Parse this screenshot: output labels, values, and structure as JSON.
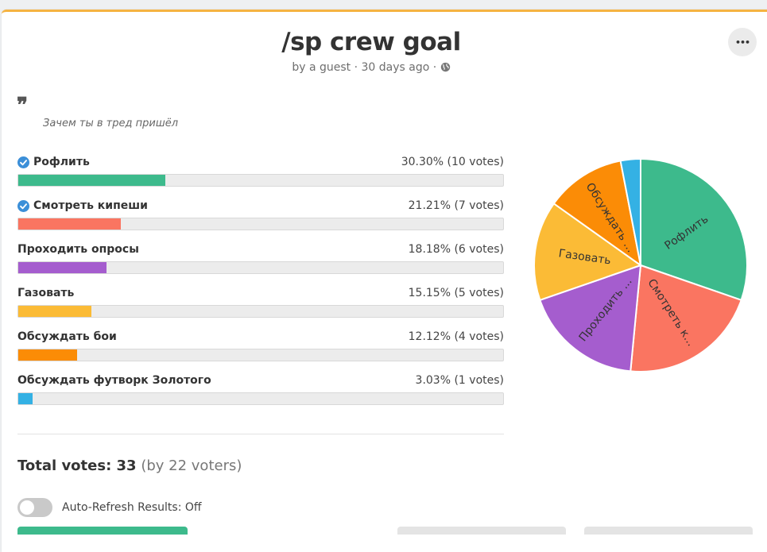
{
  "poll": {
    "title": "/sp crew goal",
    "byline": "by a guest · 30 days ago · ",
    "description": "Зачем ты в тред пришёл",
    "quote_glyph": "❞",
    "more_glyph": "•••"
  },
  "options": [
    {
      "label": "Рофлить",
      "stat": "30.30% (10 votes)",
      "percent": 30.3,
      "color": "#3dba8c",
      "checked": true
    },
    {
      "label": "Смотреть кипеши",
      "stat": "21.21% (7 votes)",
      "percent": 21.21,
      "color": "#fa7561",
      "checked": true
    },
    {
      "label": "Проходить опросы",
      "stat": "18.18% (6 votes)",
      "percent": 18.18,
      "color": "#a55dce",
      "checked": false
    },
    {
      "label": "Газовать",
      "stat": "15.15% (5 votes)",
      "percent": 15.15,
      "color": "#fbbb36",
      "checked": false
    },
    {
      "label": "Обсуждать бои",
      "stat": "12.12% (4 votes)",
      "percent": 12.12,
      "color": "#fb8c06",
      "checked": false
    },
    {
      "label": "Обсуждать футворк Золотого",
      "stat": "3.03% (1 votes)",
      "percent": 3.03,
      "color": "#34b1e4",
      "checked": false
    }
  ],
  "totals": {
    "label": "Total votes: 33",
    "voters": "(by 22 voters)"
  },
  "auto_refresh": {
    "label": "Auto-Refresh Results: Off",
    "on": false
  },
  "chart_data": {
    "type": "pie",
    "categories": [
      "Рофлить",
      "Смотреть кипеши",
      "Проходить опросы",
      "Газовать",
      "Обсуждать бои",
      "Обсуждать футворк Золотого"
    ],
    "values": [
      10,
      7,
      6,
      5,
      4,
      1
    ],
    "slice_labels": [
      "Рофлить",
      "Смотреть к...",
      "Проходить ...",
      "Газовать",
      "Обсуждать ...",
      ""
    ],
    "colors": [
      "#3dba8c",
      "#fa7561",
      "#a55dce",
      "#fbbb36",
      "#fb8c06",
      "#34b1e4"
    ]
  },
  "colors": {
    "accent_top": "#f5b342",
    "check": "#3b8fd8"
  },
  "icons": {
    "check": "check-circle-icon",
    "globe": "globe-icon",
    "more": "more-horizontal-icon",
    "quote": "quote-icon"
  }
}
